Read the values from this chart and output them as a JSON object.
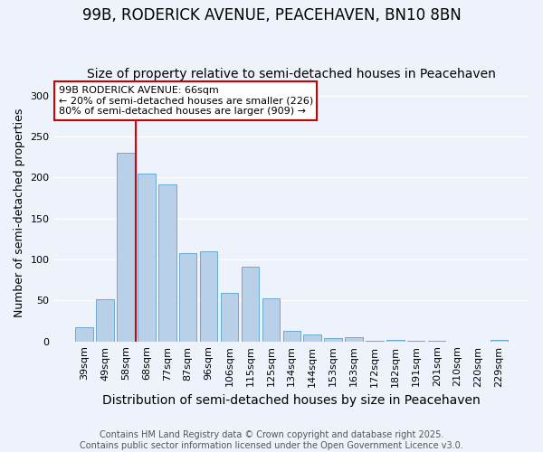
{
  "title": "99B, RODERICK AVENUE, PEACEHAVEN, BN10 8BN",
  "subtitle": "Size of property relative to semi-detached houses in Peacehaven",
  "xlabel": "Distribution of semi-detached houses by size in Peacehaven",
  "ylabel": "Number of semi-detached properties",
  "categories": [
    "39sqm",
    "49sqm",
    "58sqm",
    "68sqm",
    "77sqm",
    "87sqm",
    "96sqm",
    "106sqm",
    "115sqm",
    "125sqm",
    "134sqm",
    "144sqm",
    "153sqm",
    "163sqm",
    "172sqm",
    "182sqm",
    "191sqm",
    "201sqm",
    "210sqm",
    "220sqm",
    "229sqm"
  ],
  "values": [
    17,
    52,
    230,
    205,
    191,
    108,
    110,
    59,
    91,
    53,
    13,
    9,
    4,
    5,
    1,
    2,
    1,
    1,
    0,
    0,
    2
  ],
  "bar_color": "#b8d0e8",
  "bar_edge_color": "#6aaad4",
  "vline_x": 2.5,
  "vline_color": "#dd0000",
  "annotation_title": "99B RODERICK AVENUE: 66sqm",
  "annotation_line2": "← 20% of semi-detached houses are smaller (226)",
  "annotation_line3": "80% of semi-detached houses are larger (909) →",
  "annotation_box_facecolor": "#ffffff",
  "annotation_box_edgecolor": "#cc0000",
  "ylim": [
    0,
    315
  ],
  "yticks": [
    0,
    50,
    100,
    150,
    200,
    250,
    300
  ],
  "footer1": "Contains HM Land Registry data © Crown copyright and database right 2025.",
  "footer2": "Contains public sector information licensed under the Open Government Licence v3.0.",
  "background_color": "#eef2fb",
  "grid_color": "#ffffff",
  "title_fontsize": 12,
  "subtitle_fontsize": 10,
  "ylabel_fontsize": 9,
  "xlabel_fontsize": 10,
  "tick_fontsize": 8,
  "footer_fontsize": 7
}
